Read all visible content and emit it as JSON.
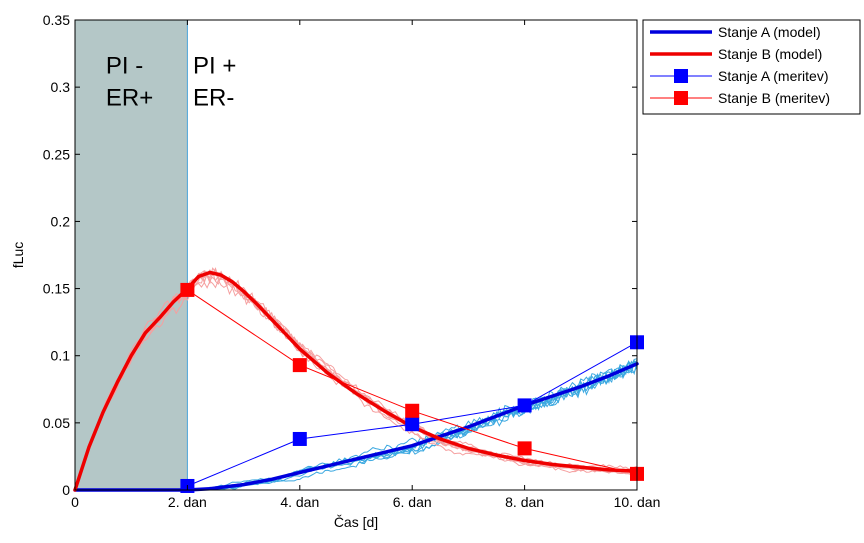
{
  "chart_data": {
    "type": "line",
    "xlabel": "Čas [d]",
    "ylabel": "fLuc",
    "xlim": [
      0,
      10
    ],
    "ylim": [
      0,
      0.35
    ],
    "x_ticks": [
      {
        "value": 0,
        "label": "0"
      },
      {
        "value": 2,
        "label": "2. dan"
      },
      {
        "value": 4,
        "label": "4. dan"
      },
      {
        "value": 6,
        "label": "6. dan"
      },
      {
        "value": 8,
        "label": "8. dan"
      },
      {
        "value": 10,
        "label": "10. dan"
      }
    ],
    "y_ticks": [
      {
        "value": 0,
        "label": "0"
      },
      {
        "value": 0.05,
        "label": "0.05"
      },
      {
        "value": 0.1,
        "label": "0.1"
      },
      {
        "value": 0.15,
        "label": "0.15"
      },
      {
        "value": 0.2,
        "label": "0.2"
      },
      {
        "value": 0.25,
        "label": "0.25"
      },
      {
        "value": 0.3,
        "label": "0.3"
      },
      {
        "value": 0.35,
        "label": "0.35"
      }
    ],
    "grid": false,
    "legend_position": "outside-top-right",
    "shaded_region": {
      "x_start": 0,
      "x_end": 2,
      "color": "#b4c7c7",
      "boundary_color": "#4aa3d8"
    },
    "annotations": [
      {
        "x": 0.55,
        "y": 0.31,
        "lines": [
          "PI -",
          "ER+"
        ]
      },
      {
        "x": 2.1,
        "y": 0.31,
        "lines": [
          "PI +",
          "ER-"
        ]
      }
    ],
    "series": [
      {
        "name": "Stanje A (model)",
        "style": "line",
        "color": "#0000dd",
        "x": [
          0,
          1,
          2,
          2.4,
          3,
          3.5,
          4,
          4.5,
          5,
          5.5,
          6,
          6.5,
          7,
          7.5,
          8,
          8.5,
          9,
          9.5,
          10
        ],
        "y": [
          0,
          0,
          0,
          0.001,
          0.004,
          0.008,
          0.013,
          0.018,
          0.023,
          0.028,
          0.033,
          0.04,
          0.047,
          0.055,
          0.063,
          0.07,
          0.077,
          0.085,
          0.094
        ]
      },
      {
        "name": "Stanje B (model)",
        "style": "line",
        "color": "#ee0000",
        "x": [
          0,
          0.25,
          0.5,
          0.75,
          1,
          1.25,
          1.5,
          1.75,
          2,
          2.2,
          2.4,
          2.6,
          2.8,
          3,
          3.25,
          3.5,
          3.75,
          4,
          4.5,
          5,
          5.5,
          6,
          6.5,
          7,
          7.5,
          8,
          8.5,
          9,
          9.5,
          10
        ],
        "y": [
          0,
          0.032,
          0.058,
          0.08,
          0.1,
          0.117,
          0.128,
          0.14,
          0.15,
          0.159,
          0.162,
          0.16,
          0.155,
          0.148,
          0.138,
          0.127,
          0.116,
          0.105,
          0.087,
          0.072,
          0.059,
          0.047,
          0.038,
          0.031,
          0.026,
          0.022,
          0.019,
          0.017,
          0.015,
          0.014
        ]
      },
      {
        "name": "Stanje A (meritev)",
        "style": "line-marker",
        "color": "#0000ff",
        "x": [
          2,
          4,
          6,
          8,
          10
        ],
        "y": [
          0.003,
          0.038,
          0.049,
          0.063,
          0.11
        ]
      },
      {
        "name": "Stanje B (meritev)",
        "style": "line-marker",
        "color": "#ff0000",
        "x": [
          2,
          4,
          6,
          8,
          10
        ],
        "y": [
          0.149,
          0.093,
          0.059,
          0.031,
          0.012
        ]
      }
    ],
    "stochastic_runs": {
      "A": {
        "color": "#3ba8e0",
        "count": 8
      },
      "B": {
        "color": "#f5a0a0",
        "count": 8
      }
    }
  }
}
